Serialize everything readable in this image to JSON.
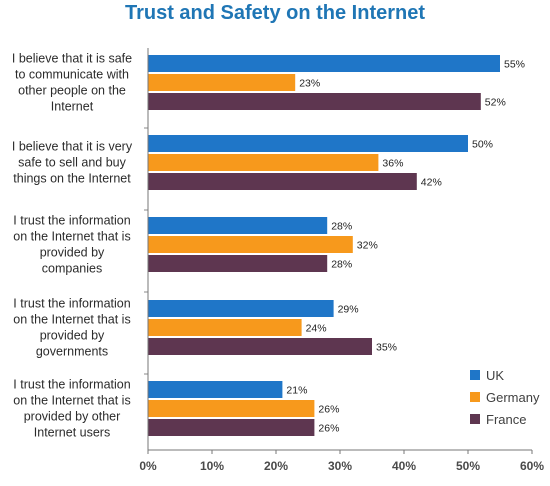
{
  "chart_data": {
    "type": "bar",
    "orientation": "horizontal",
    "title": "Trust and Safety on the Internet",
    "xlabel": "",
    "ylabel": "",
    "xlim": [
      0,
      60
    ],
    "x_ticks": [
      "0%",
      "10%",
      "20%",
      "30%",
      "40%",
      "50%",
      "60%"
    ],
    "grid": false,
    "legend_position": "bottom-right",
    "categories": [
      [
        "I believe that it is safe",
        "to communicate with",
        "other people on the",
        "Internet"
      ],
      [
        "I believe that it is very",
        "safe to sell and buy",
        "things on the Internet"
      ],
      [
        "I trust the information",
        "on the Internet that is",
        "provided by",
        "companies"
      ],
      [
        "I trust the information",
        "on the Internet that is",
        "provided by",
        "governments"
      ],
      [
        "I trust the information",
        "on the Internet that is",
        "provided by other",
        "Internet users"
      ]
    ],
    "series": [
      {
        "name": "UK",
        "color": "#1F76C8",
        "values": [
          55,
          50,
          28,
          29,
          21
        ]
      },
      {
        "name": "Germany",
        "color": "#F7991C",
        "values": [
          23,
          36,
          32,
          24,
          26
        ]
      },
      {
        "name": "France",
        "color": "#5E3650",
        "values": [
          52,
          42,
          28,
          35,
          26
        ]
      }
    ],
    "value_suffix": "%"
  }
}
